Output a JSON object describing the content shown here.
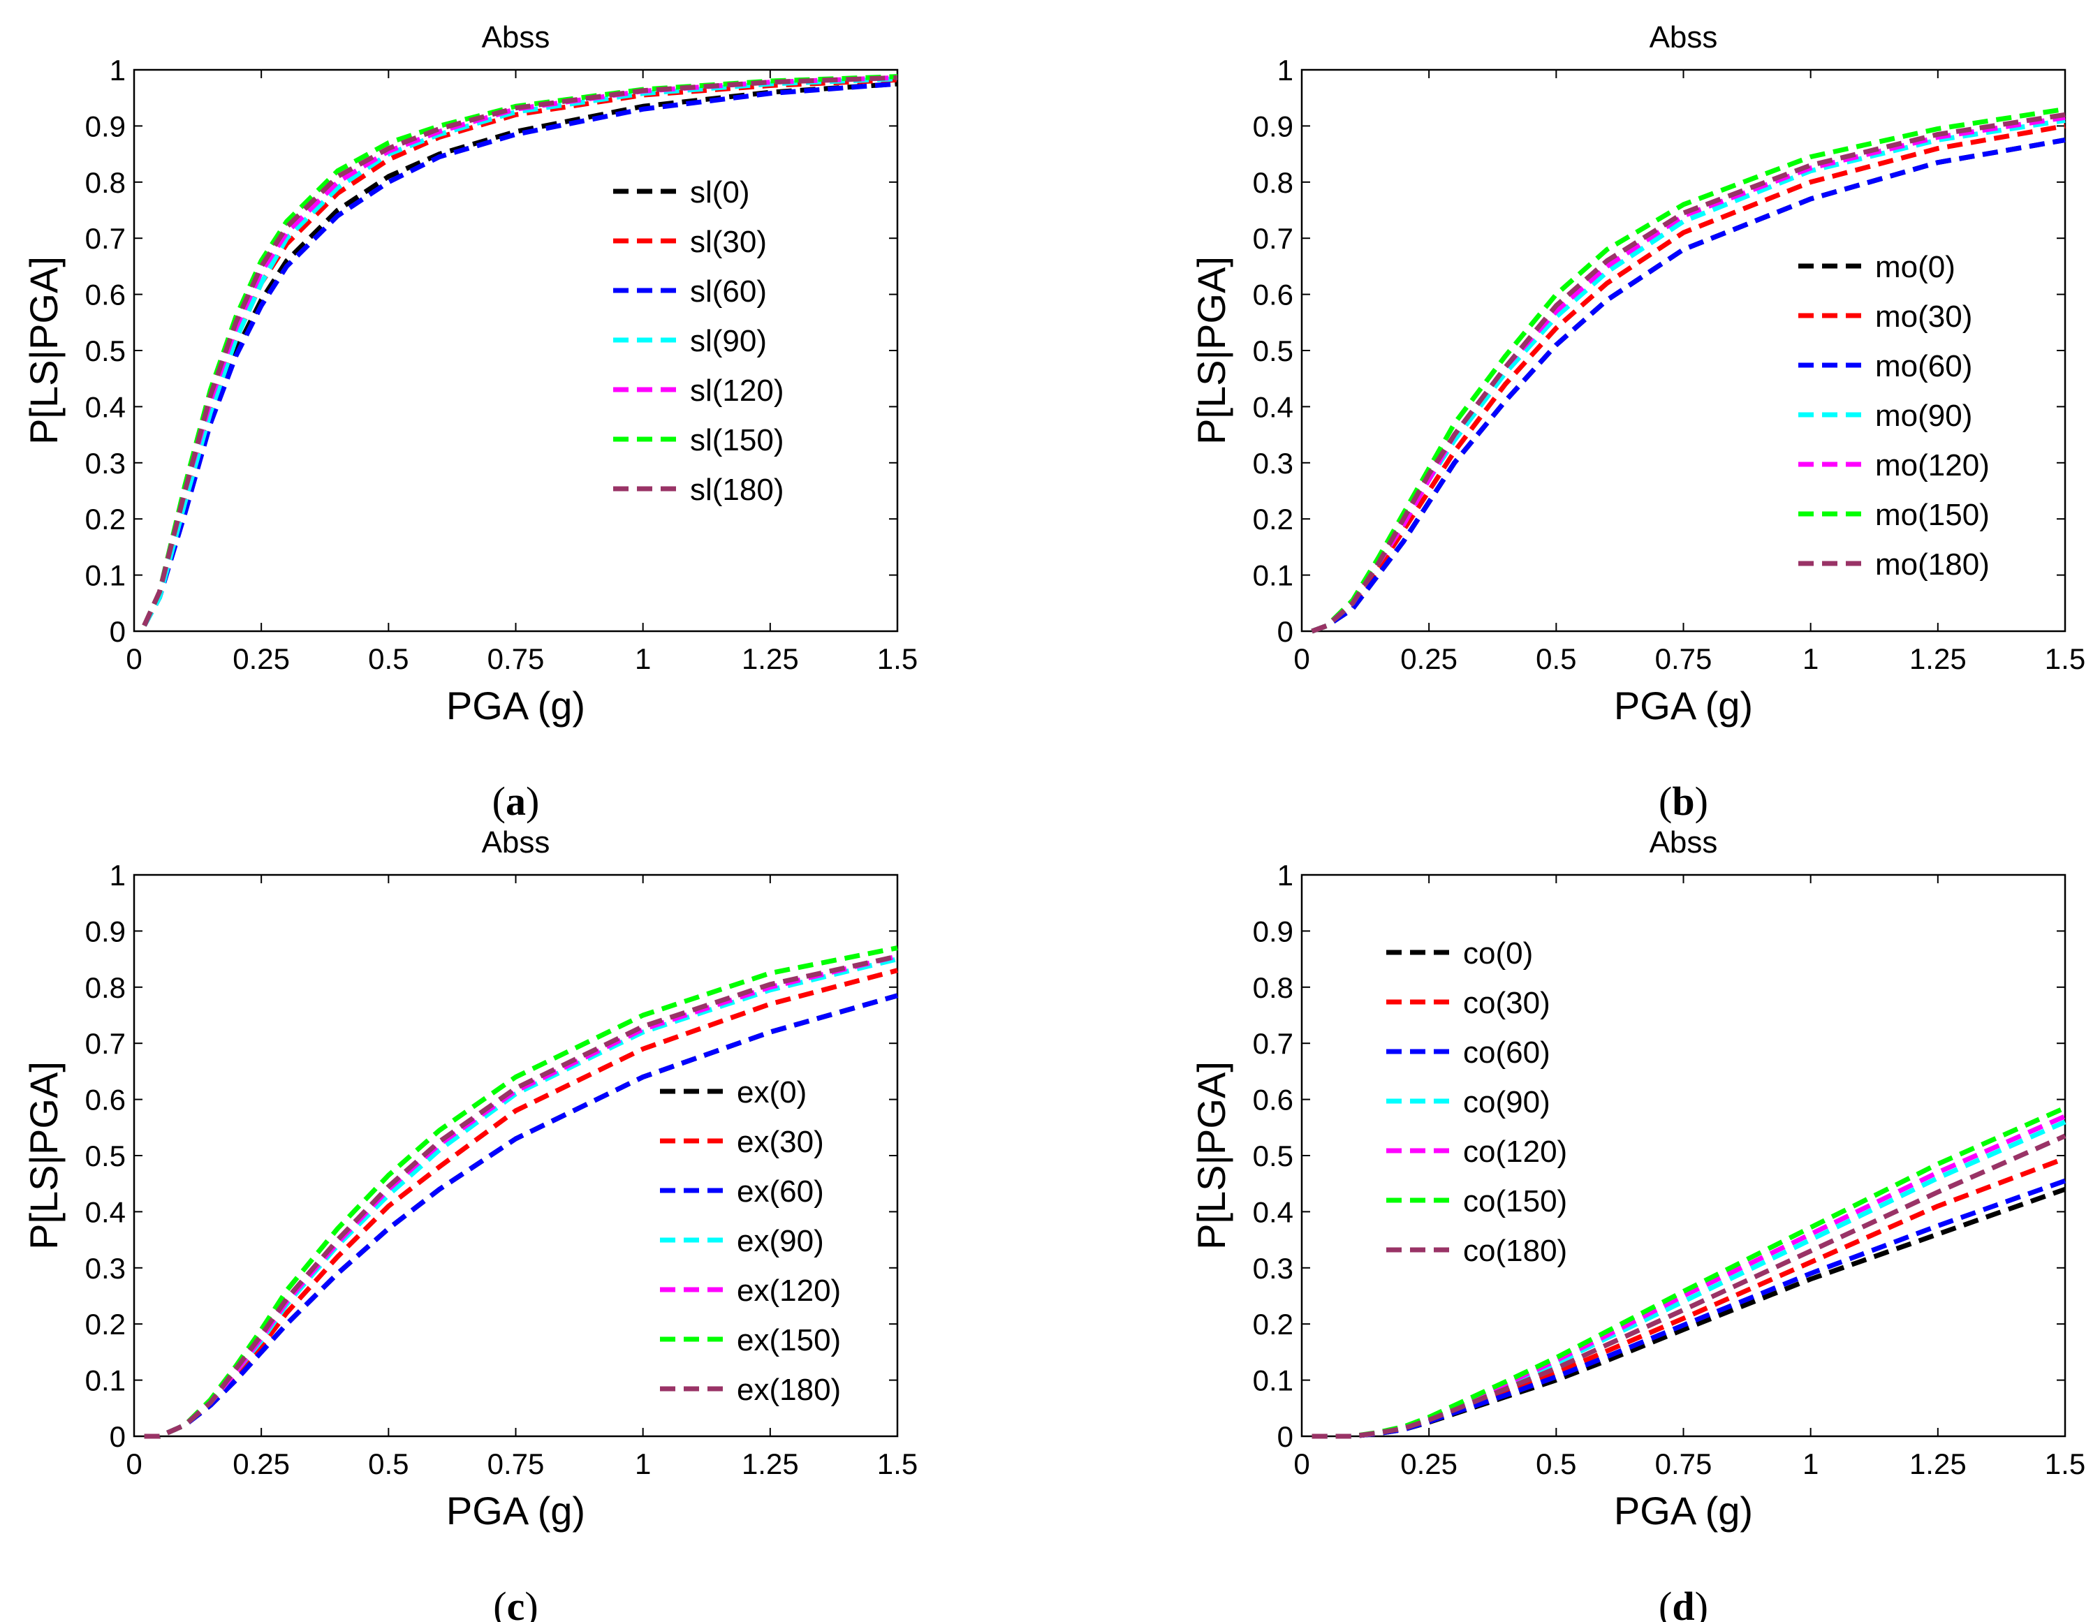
{
  "figure": {
    "colors": {
      "0": "#000000",
      "30": "#ff0000",
      "60": "#0000ff",
      "90": "#00ffff",
      "120": "#ff00ff",
      "150": "#00ff00",
      "180": "#993366"
    }
  },
  "chart_data": [
    {
      "id": "a",
      "type": "line",
      "title": "Abss",
      "xlabel": "PGA (g)",
      "ylabel": "P[LS|PGA]",
      "caption": {
        "open": "(",
        "letter": "a",
        "close": ")"
      },
      "xlim": [
        0,
        1.5
      ],
      "ylim": [
        0,
        1
      ],
      "xticks": [
        "0",
        "0.25",
        "0.5",
        "0.75",
        "1",
        "1.25",
        "1.5"
      ],
      "yticks": [
        "0",
        "0.1",
        "0.2",
        "0.3",
        "0.4",
        "0.5",
        "0.6",
        "0.7",
        "0.8",
        "0.9",
        "1"
      ],
      "legend_position": "center-right",
      "x": [
        0.02,
        0.05,
        0.1,
        0.15,
        0.2,
        0.25,
        0.3,
        0.4,
        0.5,
        0.6,
        0.75,
        1.0,
        1.25,
        1.5
      ],
      "series": [
        {
          "name": "sl(0)",
          "angle": "0",
          "values": [
            0.01,
            0.06,
            0.22,
            0.38,
            0.5,
            0.59,
            0.66,
            0.75,
            0.81,
            0.85,
            0.89,
            0.935,
            0.96,
            0.975
          ]
        },
        {
          "name": "sl(30)",
          "angle": "30",
          "values": [
            0.01,
            0.07,
            0.24,
            0.4,
            0.52,
            0.62,
            0.69,
            0.78,
            0.84,
            0.88,
            0.92,
            0.955,
            0.972,
            0.982
          ]
        },
        {
          "name": "sl(60)",
          "angle": "60",
          "values": [
            0.01,
            0.06,
            0.21,
            0.37,
            0.49,
            0.58,
            0.65,
            0.74,
            0.8,
            0.845,
            0.885,
            0.93,
            0.958,
            0.975
          ]
        },
        {
          "name": "sl(90)",
          "angle": "90",
          "values": [
            0.01,
            0.06,
            0.23,
            0.39,
            0.52,
            0.62,
            0.7,
            0.79,
            0.85,
            0.885,
            0.925,
            0.958,
            0.975,
            0.984
          ]
        },
        {
          "name": "sl(120)",
          "angle": "120",
          "values": [
            0.01,
            0.07,
            0.25,
            0.41,
            0.54,
            0.64,
            0.71,
            0.8,
            0.855,
            0.89,
            0.93,
            0.962,
            0.978,
            0.986
          ]
        },
        {
          "name": "sl(150)",
          "angle": "150",
          "values": [
            0.01,
            0.07,
            0.26,
            0.43,
            0.56,
            0.66,
            0.73,
            0.82,
            0.87,
            0.9,
            0.935,
            0.965,
            0.98,
            0.988
          ]
        },
        {
          "name": "sl(180)",
          "angle": "180",
          "values": [
            0.01,
            0.07,
            0.25,
            0.42,
            0.55,
            0.65,
            0.72,
            0.81,
            0.86,
            0.895,
            0.932,
            0.963,
            0.978,
            0.986
          ]
        }
      ]
    },
    {
      "id": "b",
      "type": "line",
      "title": "Abss",
      "xlabel": "PGA (g)",
      "ylabel": "P[LS|PGA]",
      "caption": {
        "open": "(",
        "letter": "b",
        "close": ")"
      },
      "xlim": [
        0,
        1.5
      ],
      "ylim": [
        0,
        1
      ],
      "xticks": [
        "0",
        "0.25",
        "0.5",
        "0.75",
        "1",
        "1.25",
        "1.5"
      ],
      "yticks": [
        "0",
        "0.1",
        "0.2",
        "0.3",
        "0.4",
        "0.5",
        "0.6",
        "0.7",
        "0.8",
        "0.9",
        "1"
      ],
      "legend_position": "center-right",
      "x": [
        0.02,
        0.05,
        0.1,
        0.15,
        0.2,
        0.25,
        0.3,
        0.4,
        0.5,
        0.6,
        0.75,
        1.0,
        1.25,
        1.5
      ],
      "series": [
        {
          "name": "mo(0)",
          "angle": "0",
          "values": [
            0.0,
            0.01,
            0.04,
            0.1,
            0.16,
            0.23,
            0.3,
            0.41,
            0.51,
            0.59,
            0.68,
            0.77,
            0.835,
            0.875
          ]
        },
        {
          "name": "mo(30)",
          "angle": "30",
          "values": [
            0.0,
            0.01,
            0.045,
            0.11,
            0.18,
            0.25,
            0.32,
            0.44,
            0.54,
            0.62,
            0.71,
            0.8,
            0.86,
            0.9
          ]
        },
        {
          "name": "mo(60)",
          "angle": "60",
          "values": [
            0.0,
            0.01,
            0.04,
            0.1,
            0.16,
            0.23,
            0.3,
            0.41,
            0.51,
            0.59,
            0.68,
            0.77,
            0.835,
            0.875
          ]
        },
        {
          "name": "mo(90)",
          "angle": "90",
          "values": [
            0.0,
            0.01,
            0.05,
            0.12,
            0.19,
            0.27,
            0.34,
            0.46,
            0.56,
            0.64,
            0.73,
            0.82,
            0.875,
            0.91
          ]
        },
        {
          "name": "mo(120)",
          "angle": "120",
          "values": [
            0.0,
            0.01,
            0.05,
            0.12,
            0.19,
            0.27,
            0.35,
            0.47,
            0.57,
            0.65,
            0.74,
            0.825,
            0.88,
            0.915
          ]
        },
        {
          "name": "mo(150)",
          "angle": "150",
          "values": [
            0.0,
            0.01,
            0.055,
            0.13,
            0.21,
            0.29,
            0.37,
            0.49,
            0.6,
            0.68,
            0.76,
            0.845,
            0.895,
            0.93
          ]
        },
        {
          "name": "mo(180)",
          "angle": "180",
          "values": [
            0.0,
            0.01,
            0.05,
            0.12,
            0.2,
            0.28,
            0.35,
            0.47,
            0.58,
            0.66,
            0.745,
            0.83,
            0.885,
            0.92
          ]
        }
      ]
    },
    {
      "id": "c",
      "type": "line",
      "title": "Abss",
      "xlabel": "PGA (g)",
      "ylabel": "P[LS|PGA]",
      "caption": {
        "open": "(",
        "letter": "c",
        "close": ")"
      },
      "xlim": [
        0,
        1.5
      ],
      "ylim": [
        0,
        1
      ],
      "xticks": [
        "0",
        "0.25",
        "0.5",
        "0.75",
        "1",
        "1.25",
        "1.5"
      ],
      "yticks": [
        "0",
        "0.1",
        "0.2",
        "0.3",
        "0.4",
        "0.5",
        "0.6",
        "0.7",
        "0.8",
        "0.9",
        "1"
      ],
      "legend_position": "center-right",
      "x": [
        0.02,
        0.05,
        0.1,
        0.15,
        0.2,
        0.25,
        0.3,
        0.4,
        0.5,
        0.6,
        0.75,
        1.0,
        1.25,
        1.5
      ],
      "series": [
        {
          "name": "ex(0)",
          "angle": "0",
          "values": [
            0.0,
            0.0,
            0.02,
            0.055,
            0.1,
            0.15,
            0.2,
            0.29,
            0.37,
            0.44,
            0.53,
            0.64,
            0.72,
            0.785
          ]
        },
        {
          "name": "ex(30)",
          "angle": "30",
          "values": [
            0.0,
            0.0,
            0.02,
            0.06,
            0.11,
            0.16,
            0.22,
            0.32,
            0.41,
            0.48,
            0.58,
            0.69,
            0.77,
            0.83
          ]
        },
        {
          "name": "ex(60)",
          "angle": "60",
          "values": [
            0.0,
            0.0,
            0.02,
            0.055,
            0.1,
            0.15,
            0.2,
            0.29,
            0.37,
            0.44,
            0.53,
            0.64,
            0.72,
            0.785
          ]
        },
        {
          "name": "ex(90)",
          "angle": "90",
          "values": [
            0.0,
            0.0,
            0.02,
            0.06,
            0.115,
            0.17,
            0.235,
            0.34,
            0.43,
            0.51,
            0.61,
            0.72,
            0.795,
            0.85
          ]
        },
        {
          "name": "ex(120)",
          "angle": "120",
          "values": [
            0.0,
            0.0,
            0.02,
            0.06,
            0.115,
            0.175,
            0.24,
            0.345,
            0.44,
            0.52,
            0.615,
            0.725,
            0.8,
            0.855
          ]
        },
        {
          "name": "ex(150)",
          "angle": "150",
          "values": [
            0.0,
            0.0,
            0.02,
            0.065,
            0.125,
            0.19,
            0.26,
            0.37,
            0.465,
            0.545,
            0.64,
            0.75,
            0.825,
            0.87
          ]
        },
        {
          "name": "ex(180)",
          "angle": "180",
          "values": [
            0.0,
            0.0,
            0.02,
            0.06,
            0.12,
            0.18,
            0.245,
            0.35,
            0.445,
            0.525,
            0.62,
            0.73,
            0.805,
            0.855
          ]
        }
      ]
    },
    {
      "id": "d",
      "type": "line",
      "title": "Abss",
      "xlabel": "PGA (g)",
      "ylabel": "P[LS|PGA]",
      "caption": {
        "open": "(",
        "letter": "d",
        "close": ")"
      },
      "xlim": [
        0,
        1.5
      ],
      "ylim": [
        0,
        1
      ],
      "xticks": [
        "0",
        "0.25",
        "0.5",
        "0.75",
        "1",
        "1.25",
        "1.5"
      ],
      "yticks": [
        "0",
        "0.1",
        "0.2",
        "0.3",
        "0.4",
        "0.5",
        "0.6",
        "0.7",
        "0.8",
        "0.9",
        "1"
      ],
      "legend_position": "top-left",
      "x": [
        0.02,
        0.1,
        0.15,
        0.2,
        0.25,
        0.3,
        0.4,
        0.5,
        0.6,
        0.75,
        1.0,
        1.25,
        1.5
      ],
      "series": [
        {
          "name": "co(0)",
          "angle": "0",
          "values": [
            0.0,
            0.0,
            0.005,
            0.012,
            0.025,
            0.04,
            0.07,
            0.1,
            0.135,
            0.19,
            0.28,
            0.36,
            0.44
          ]
        },
        {
          "name": "co(30)",
          "angle": "30",
          "values": [
            0.0,
            0.0,
            0.005,
            0.013,
            0.027,
            0.044,
            0.078,
            0.113,
            0.152,
            0.21,
            0.31,
            0.41,
            0.495
          ]
        },
        {
          "name": "co(60)",
          "angle": "60",
          "values": [
            0.0,
            0.0,
            0.005,
            0.012,
            0.026,
            0.042,
            0.073,
            0.106,
            0.142,
            0.198,
            0.29,
            0.375,
            0.455
          ]
        },
        {
          "name": "co(90)",
          "angle": "90",
          "values": [
            0.0,
            0.0,
            0.006,
            0.015,
            0.031,
            0.05,
            0.09,
            0.13,
            0.175,
            0.24,
            0.35,
            0.46,
            0.56
          ]
        },
        {
          "name": "co(120)",
          "angle": "120",
          "values": [
            0.0,
            0.0,
            0.006,
            0.016,
            0.032,
            0.052,
            0.093,
            0.135,
            0.18,
            0.25,
            0.36,
            0.47,
            0.57
          ]
        },
        {
          "name": "co(150)",
          "angle": "150",
          "values": [
            0.0,
            0.0,
            0.007,
            0.017,
            0.034,
            0.055,
            0.097,
            0.14,
            0.187,
            0.258,
            0.372,
            0.485,
            0.585
          ]
        },
        {
          "name": "co(180)",
          "angle": "180",
          "values": [
            0.0,
            0.0,
            0.006,
            0.014,
            0.029,
            0.047,
            0.084,
            0.121,
            0.163,
            0.225,
            0.33,
            0.435,
            0.535
          ]
        }
      ]
    }
  ]
}
